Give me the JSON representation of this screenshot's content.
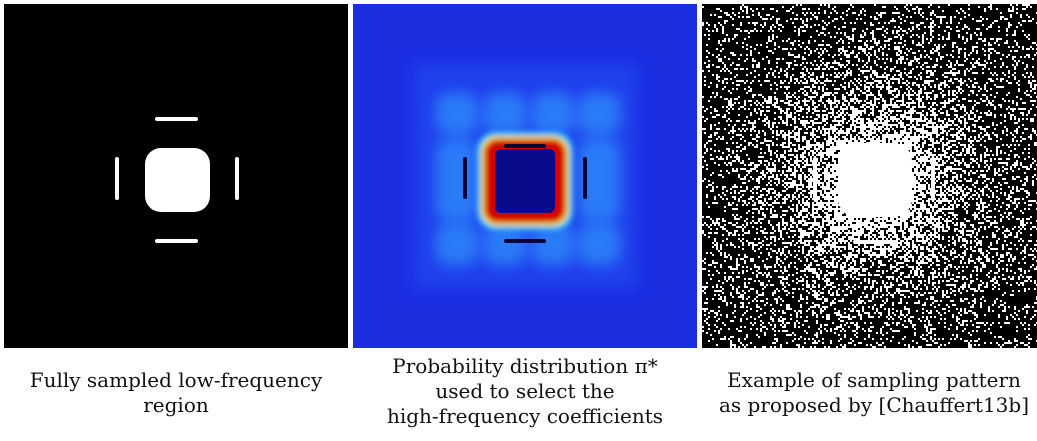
{
  "panels": [
    {
      "id": "low-frequency-region",
      "caption_lines": [
        "Fully sampled low-frequency",
        "region"
      ]
    },
    {
      "id": "probability-distribution",
      "caption_lines": [
        "Probability distribution π*",
        "used to select the",
        "high-frequency coefficients"
      ]
    },
    {
      "id": "sampling-pattern",
      "caption_lines": [
        "Example of sampling pattern",
        "as proposed by [Chauffert13b]"
      ]
    }
  ],
  "colors": {
    "background_black": "#000000",
    "mask_white": "#ffffff",
    "heatmap_base_blue": "#1a2ee0",
    "heatmap_hot_red": "#d40000",
    "heatmap_center_navy": "#0a0a8a"
  }
}
